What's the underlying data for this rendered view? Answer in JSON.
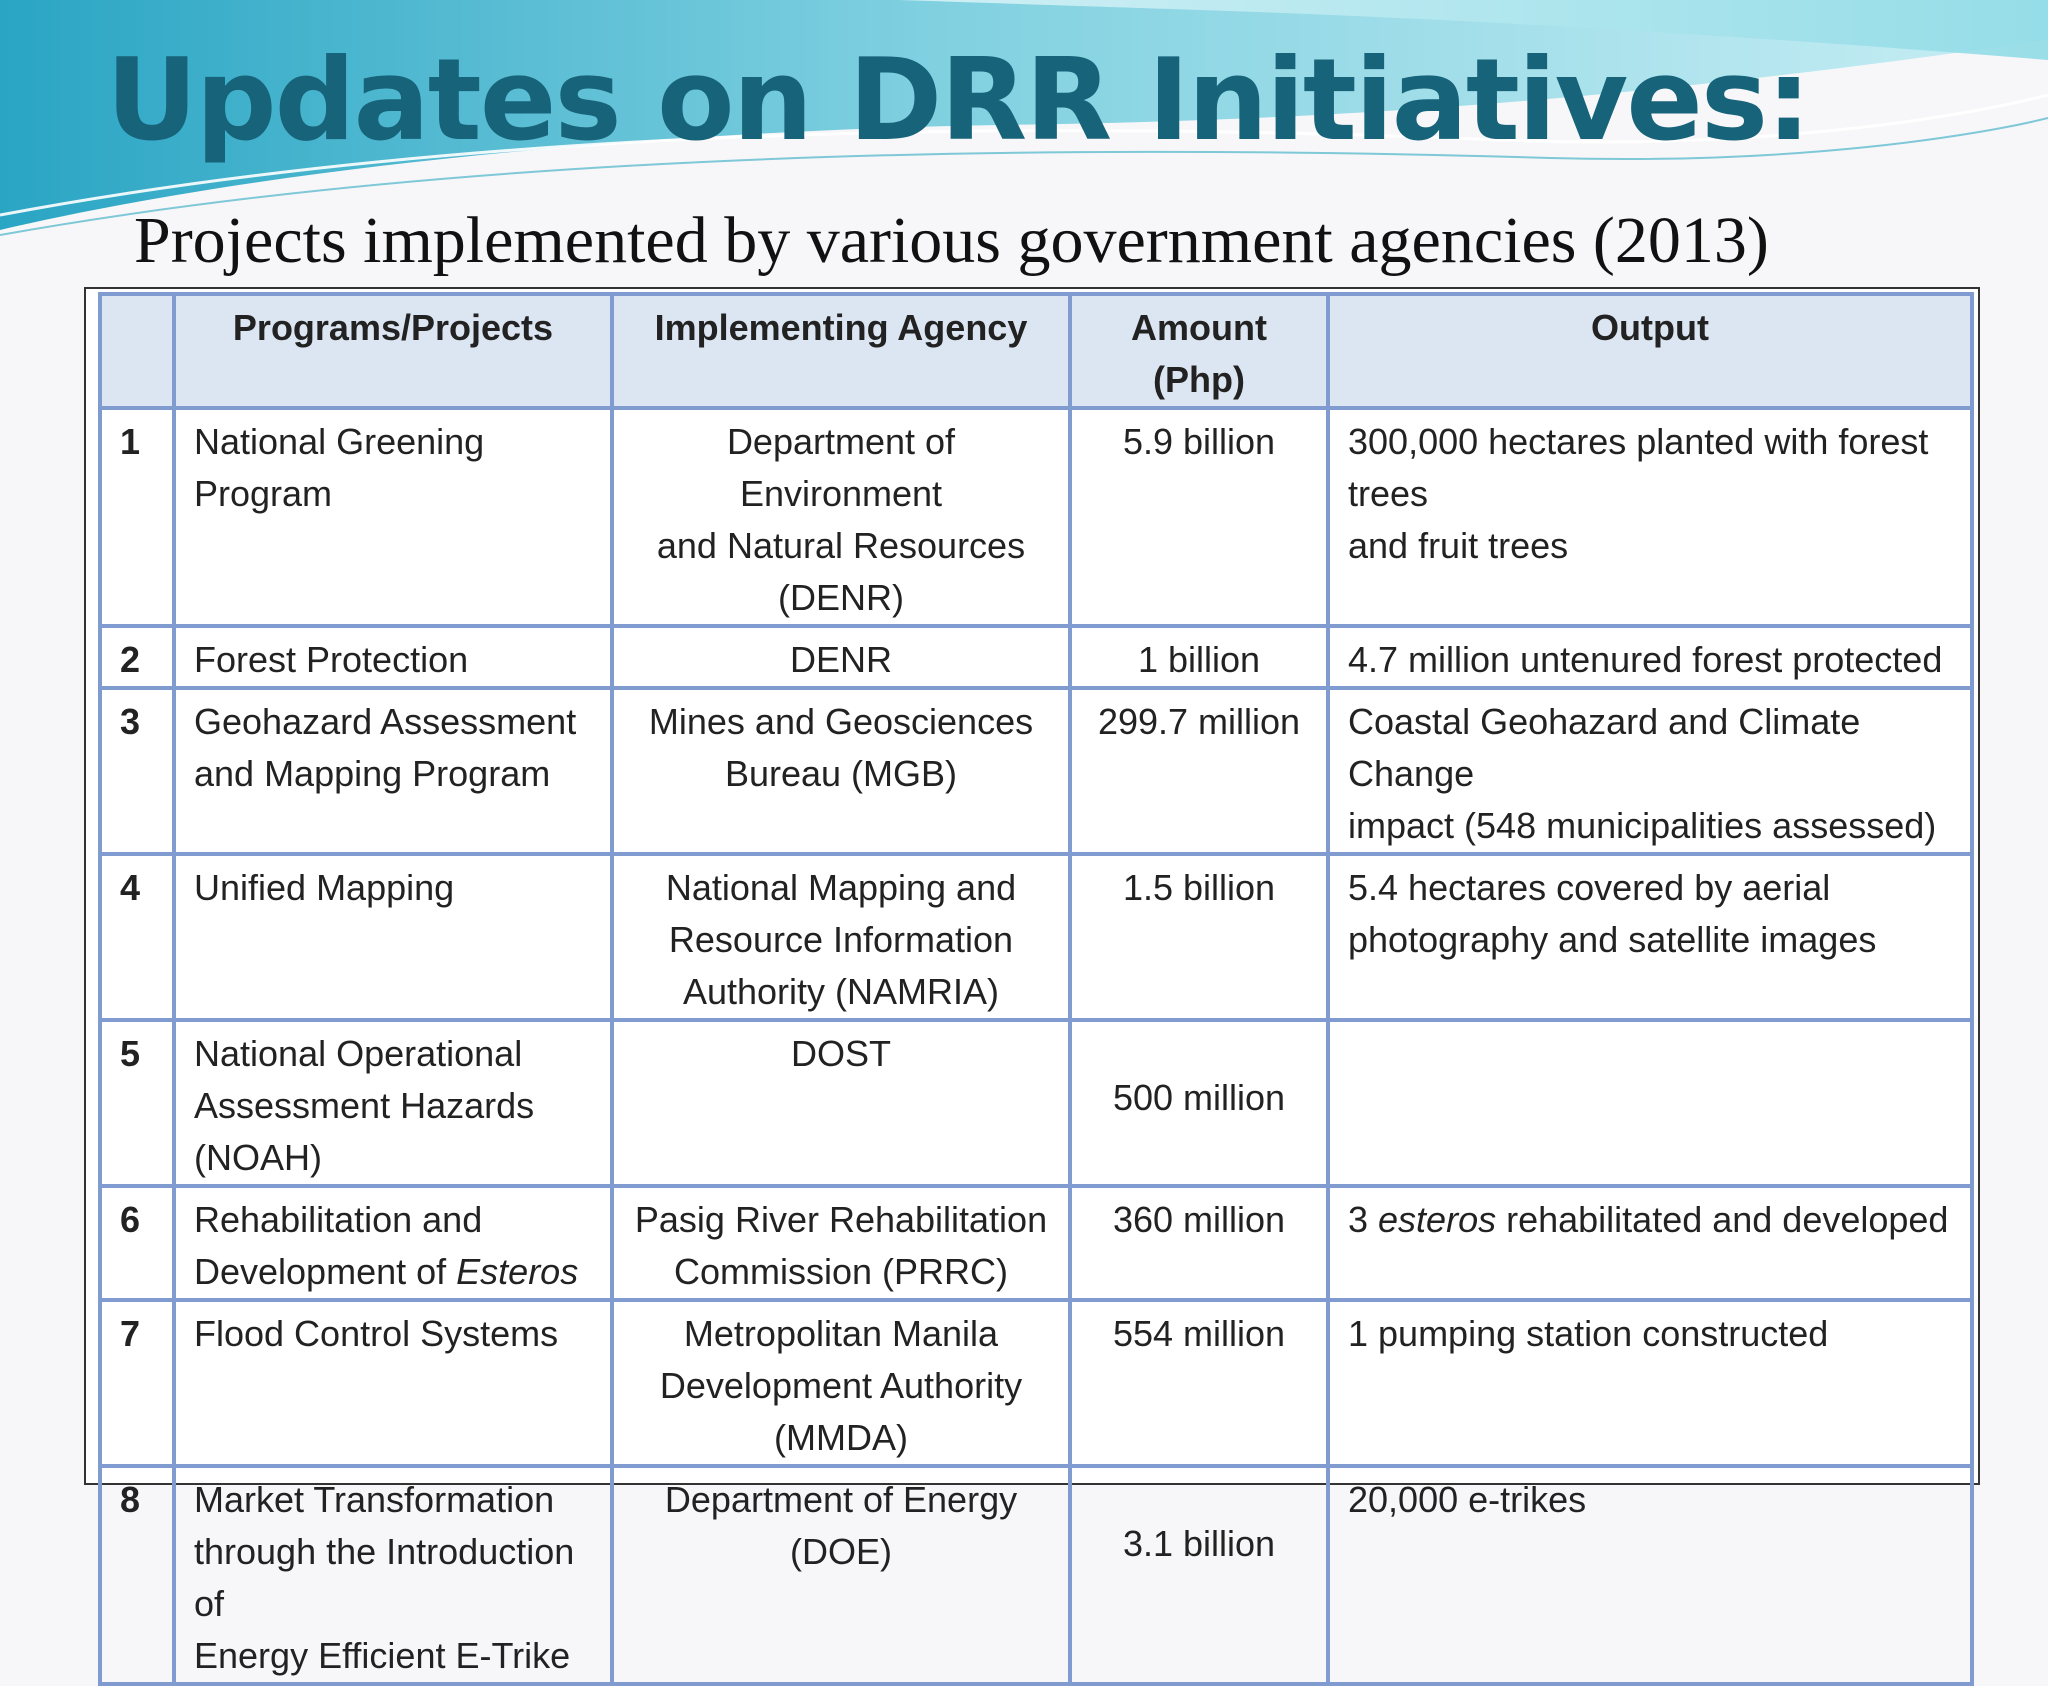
{
  "title": "Updates on DRR Initiatives:",
  "subtitle": "Projects implemented by various government agencies (2013)",
  "table": {
    "headers": {
      "num": "",
      "program": "Programs/Projects",
      "agency": "Implementing Agency",
      "amount_line1": "Amount",
      "amount_line2": "(Php)",
      "output": "Output"
    },
    "rows": [
      {
        "num": "1",
        "program": "National Greening Program",
        "agency_lines": [
          "Department of Environment",
          "and Natural Resources",
          "(DENR)"
        ],
        "amount": "5.9 billion",
        "output_lines": [
          "300,000 hectares planted with forest trees",
          "and fruit trees"
        ]
      },
      {
        "num": "2",
        "program": "Forest Protection",
        "agency_lines": [
          "DENR"
        ],
        "amount": "1 billion",
        "output_lines": [
          "4.7 million untenured forest protected"
        ]
      },
      {
        "num": "3",
        "program_lines": [
          "Geohazard Assessment",
          "and Mapping Program"
        ],
        "agency_lines": [
          "Mines  and Geosciences",
          "Bureau (MGB)"
        ],
        "amount": "299.7 million",
        "output_lines": [
          "Coastal Geohazard and Climate Change",
          "impact (548 municipalities assessed)"
        ]
      },
      {
        "num": "4",
        "program": "Unified Mapping",
        "agency_lines": [
          "National Mapping and",
          "Resource Information",
          "Authority (NAMRIA)"
        ],
        "amount": "1.5 billion",
        "output_lines": [
          "5.4 hectares covered by aerial",
          "photography and satellite images"
        ]
      },
      {
        "num": "5",
        "program_lines": [
          "National Operational",
          "Assessment Hazards",
          "(NOAH)"
        ],
        "agency_lines": [
          "DOST"
        ],
        "amount": "500 million",
        "output_lines": []
      },
      {
        "num": "6",
        "program_line1": "Rehabilitation and",
        "program_line2_prefix": "Development of ",
        "program_line2_italic": "Esteros",
        "agency_lines": [
          "Pasig River Rehabilitation",
          "Commission (PRRC)"
        ],
        "amount": "360 million",
        "output_prefix": "3 ",
        "output_italic": "esteros",
        "output_suffix": " rehabilitated and developed"
      },
      {
        "num": "7",
        "program": "Flood Control Systems",
        "agency_lines": [
          "Metropolitan Manila",
          "Development Authority",
          "(MMDA)"
        ],
        "amount": "554 million",
        "output_lines": [
          "1 pumping station constructed"
        ]
      },
      {
        "num": "8",
        "program_lines": [
          "Market Transformation",
          "through the Introduction of",
          "Energy Efficient E-Trike"
        ],
        "agency_lines": [
          "Department of Energy (DOE)"
        ],
        "amount": "3.1 billion",
        "output_lines": [
          "20,000 e-trikes"
        ]
      }
    ]
  },
  "colors": {
    "title": "#17637a",
    "header_bg": "#dce6f2",
    "grid": "#7f9bd0",
    "wave_light": "#a9e2ec",
    "wave_mid": "#4ab6cf"
  }
}
